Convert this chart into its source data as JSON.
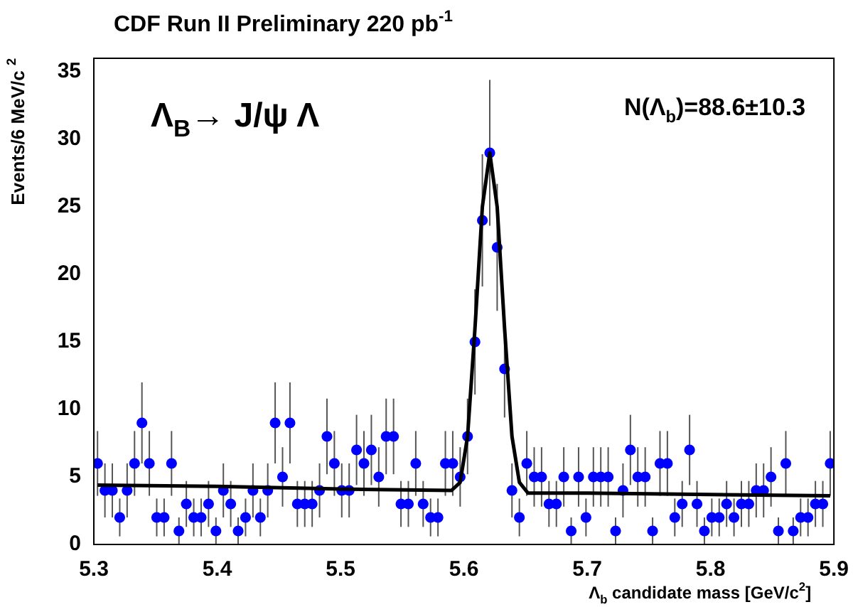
{
  "chart_data": {
    "type": "scatter",
    "title": "CDF Run II Preliminary 220 pb$^{-1}$",
    "xlabel": "Λ$_{b}$ candidate mass [GeV/c$^{2}$]",
    "ylabel": "Events/6 MeV/c $^{2}$",
    "annotations": [
      "Λ$_{B}$→ J/ψ Λ",
      "N(Λ$_{b}$)=88.6±10.3"
    ],
    "xlim": [
      5.3,
      5.9
    ],
    "xticks": [
      5.3,
      5.4,
      5.5,
      5.6,
      5.7,
      5.8,
      5.9
    ],
    "ylim": [
      0,
      36
    ],
    "yticks": [
      0,
      5,
      10,
      15,
      20,
      25,
      30,
      35
    ],
    "grid": false,
    "legend": false,
    "series": [
      {
        "type": "scatter",
        "marker": "circle",
        "color": "#0000ff",
        "x": [
          5.303,
          5.309,
          5.315,
          5.321,
          5.327,
          5.333,
          5.339,
          5.345,
          5.351,
          5.357,
          5.363,
          5.369,
          5.375,
          5.381,
          5.387,
          5.393,
          5.399,
          5.405,
          5.411,
          5.417,
          5.423,
          5.429,
          5.435,
          5.441,
          5.447,
          5.453,
          5.459,
          5.465,
          5.471,
          5.477,
          5.483,
          5.489,
          5.495,
          5.501,
          5.507,
          5.513,
          5.519,
          5.525,
          5.531,
          5.537,
          5.543,
          5.549,
          5.555,
          5.561,
          5.567,
          5.573,
          5.579,
          5.585,
          5.591,
          5.597,
          5.603,
          5.609,
          5.615,
          5.621,
          5.627,
          5.633,
          5.639,
          5.645,
          5.651,
          5.657,
          5.663,
          5.669,
          5.675,
          5.681,
          5.687,
          5.693,
          5.699,
          5.705,
          5.711,
          5.717,
          5.723,
          5.729,
          5.735,
          5.741,
          5.747,
          5.753,
          5.759,
          5.765,
          5.771,
          5.777,
          5.783,
          5.789,
          5.795,
          5.801,
          5.807,
          5.813,
          5.819,
          5.825,
          5.831,
          5.837,
          5.843,
          5.849,
          5.855,
          5.861,
          5.867,
          5.873,
          5.879,
          5.885,
          5.891,
          5.897
        ],
        "values": [
          6,
          4,
          4,
          2,
          4,
          6,
          9,
          6,
          2,
          2,
          6,
          1,
          3,
          2,
          2,
          3,
          1,
          4,
          3,
          1,
          2,
          4,
          2,
          4,
          9,
          5,
          9,
          3,
          3,
          3,
          4,
          8,
          6,
          4,
          4,
          7,
          6,
          7,
          5,
          8,
          8,
          3,
          3,
          6,
          3,
          2,
          2,
          6,
          6,
          5,
          8,
          15,
          24,
          29,
          22,
          13,
          4,
          2,
          6,
          5,
          5,
          3,
          3,
          5,
          1,
          5,
          2,
          5,
          5,
          5,
          1,
          4,
          7,
          5,
          5,
          1,
          6,
          6,
          2,
          3,
          7,
          3,
          1,
          2,
          2,
          3,
          2,
          3,
          3,
          4,
          4,
          5,
          1,
          6,
          1,
          2,
          2,
          3,
          3,
          6
        ],
        "errors": [
          2.4,
          2,
          2,
          1.4,
          2,
          2.4,
          3,
          2.4,
          1.4,
          1.4,
          2.4,
          1,
          1.7,
          1.4,
          1.4,
          1.7,
          1,
          2,
          1.7,
          1,
          1.4,
          2,
          1.4,
          2,
          3,
          2.2,
          3,
          1.7,
          1.7,
          1.7,
          2,
          2.8,
          2.4,
          2,
          2,
          2.6,
          2.4,
          2.6,
          2.2,
          2.8,
          2.8,
          1.7,
          1.7,
          2.4,
          1.7,
          1.4,
          1.4,
          2.4,
          2.4,
          2.2,
          2.8,
          3.9,
          4.9,
          5.4,
          4.7,
          3.6,
          2,
          1.4,
          2.4,
          2.2,
          2.2,
          1.7,
          1.7,
          2.2,
          1,
          2.2,
          1.4,
          2.2,
          2.2,
          2.2,
          1,
          2,
          2.6,
          2.2,
          2.2,
          1,
          2.4,
          2.4,
          1.4,
          1.7,
          2.6,
          1.7,
          1,
          1.4,
          1.4,
          1.7,
          1.4,
          1.7,
          1.7,
          2,
          2,
          2.2,
          1,
          2.4,
          1,
          1.4,
          1.4,
          1.7,
          1.7,
          2.4
        ]
      },
      {
        "type": "line",
        "marker": "none",
        "color": "#000000",
        "x": [
          5.303,
          5.4,
          5.5,
          5.59,
          5.597,
          5.603,
          5.609,
          5.615,
          5.621,
          5.627,
          5.633,
          5.639,
          5.645,
          5.652,
          5.7,
          5.8,
          5.897
        ],
        "values": [
          4.4,
          4.3,
          4.1,
          4.0,
          4.6,
          8,
          16,
          25,
          29,
          25,
          16,
          8,
          4.6,
          3.8,
          3.8,
          3.7,
          3.6
        ]
      }
    ]
  }
}
